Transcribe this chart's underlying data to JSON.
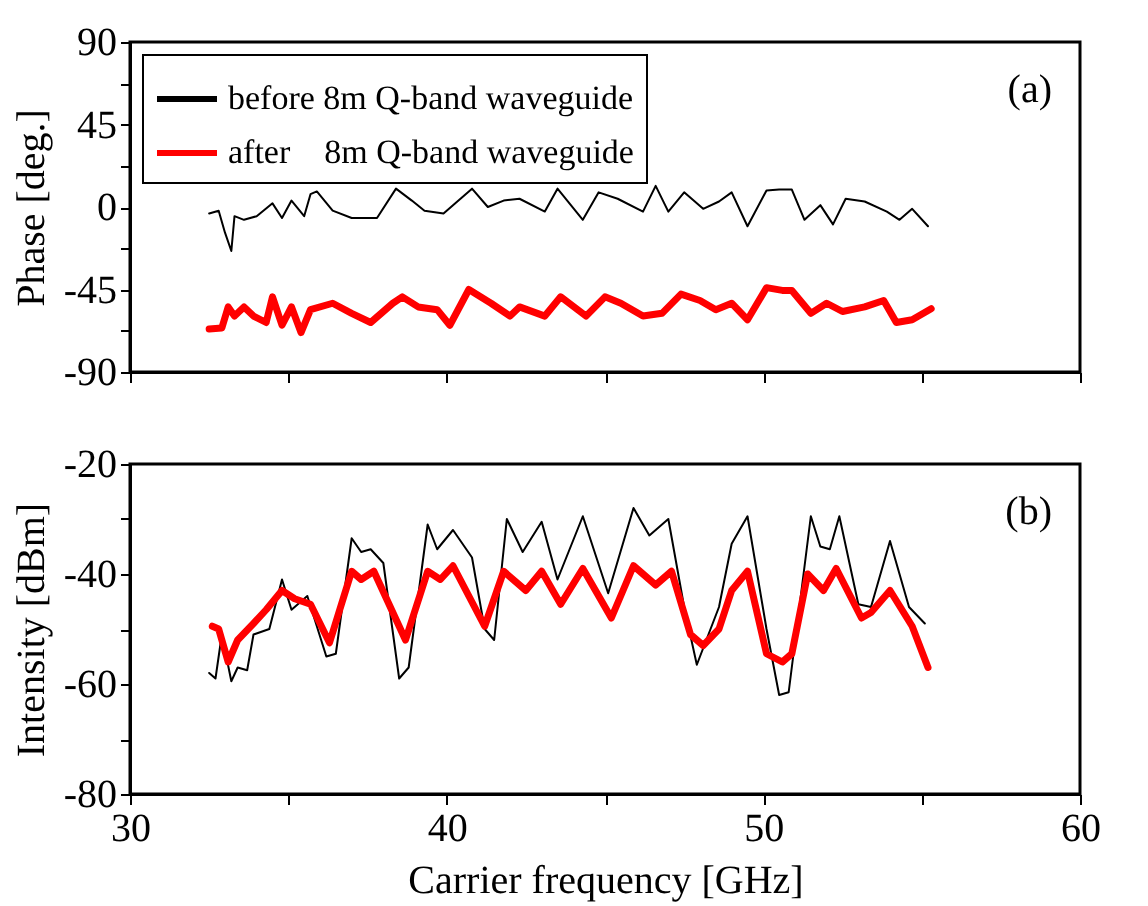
{
  "chart_data": [
    {
      "type": "line",
      "ylabel": "Phase [deg.]",
      "annotations": [
        "(a)"
      ],
      "legend": "top left",
      "tick_labels": "y",
      "xlim": [
        30,
        60
      ],
      "xticks": [
        {
          "value": 30,
          "label": null
        },
        {
          "value": 35,
          "label": null
        },
        {
          "value": 40,
          "label": null
        },
        {
          "value": 45,
          "label": null
        },
        {
          "value": 50,
          "label": null
        },
        {
          "value": 55,
          "label": null
        },
        {
          "value": 60,
          "label": null
        }
      ],
      "ylim": [
        -90,
        90
      ],
      "yticks": [
        -90,
        {
          "value": -67.5,
          "label": null
        },
        -45,
        {
          "value": -22.5,
          "label": null
        },
        0,
        {
          "value": 22.5,
          "label": null
        },
        45,
        {
          "value": 67.5,
          "label": null
        },
        90
      ],
      "series": [
        {
          "name": "before 8m Q-band waveguide",
          "color": "#000000",
          "x": [
            32.5,
            32.8,
            33.0,
            33.2,
            33.3,
            33.6,
            34.0,
            34.5,
            34.8,
            35.1,
            35.5,
            35.7,
            35.9,
            36.4,
            37.0,
            37.8,
            38.4,
            38.9,
            39.3,
            39.9,
            40.8,
            41.3,
            41.8,
            42.3,
            43.1,
            43.5,
            44.3,
            44.8,
            45.4,
            46.2,
            46.6,
            47.0,
            47.5,
            48.1,
            48.6,
            49.0,
            49.5,
            50.1,
            50.5,
            50.9,
            51.3,
            51.8,
            52.2,
            52.6,
            53.2,
            53.9,
            54.3,
            54.7,
            55.2
          ],
          "values": [
            -3.5,
            -2,
            -14,
            -24,
            -5,
            -7,
            -5,
            2,
            -6,
            3.5,
            -5,
            7,
            8.5,
            -2,
            -6,
            -6,
            10,
            3.5,
            -2,
            -3.5,
            10,
            0,
            3.5,
            4.5,
            -2.5,
            10,
            -7,
            8,
            4.5,
            -2.5,
            11.5,
            -2.5,
            8,
            -1,
            3,
            8,
            -10.5,
            9,
            9.5,
            9.5,
            -7,
            1,
            -9.5,
            4.5,
            3,
            -2.5,
            -7,
            -1,
            -10.5
          ]
        },
        {
          "name": "after    8m Q-band waveguide",
          "color": "#ff0000",
          "x": [
            32.5,
            32.9,
            33.1,
            33.3,
            33.6,
            33.9,
            34.3,
            34.5,
            34.8,
            35.1,
            35.4,
            35.7,
            36.4,
            37.0,
            37.6,
            38.3,
            38.6,
            39.1,
            39.7,
            40.1,
            40.7,
            41.4,
            42.0,
            42.3,
            43.1,
            43.6,
            44.4,
            45.0,
            45.5,
            46.2,
            46.8,
            47.4,
            48.0,
            48.5,
            49.0,
            49.5,
            50.1,
            50.6,
            50.9,
            51.5,
            52.0,
            52.5,
            53.2,
            53.8,
            54.2,
            54.7,
            55.3
          ],
          "values": [
            -66.5,
            -66,
            -54.5,
            -59.5,
            -54.5,
            -59.5,
            -63,
            -49,
            -64.5,
            -54.5,
            -68.5,
            -56,
            -52.5,
            -58,
            -63,
            -52.5,
            -49,
            -54.5,
            -56,
            -64.5,
            -45,
            -52.5,
            -59.5,
            -54.5,
            -59.5,
            -49,
            -59.5,
            -49,
            -52.5,
            -59.5,
            -58,
            -47.5,
            -51,
            -56,
            -52.5,
            -61.5,
            -44,
            -45.5,
            -45.5,
            -58,
            -52.5,
            -57,
            -54.5,
            -51,
            -63,
            -61.5,
            -55.5
          ]
        }
      ]
    },
    {
      "type": "line",
      "xlabel": "Carrier frequency [GHz]",
      "ylabel": "Intensity [dBm]",
      "annotations": [
        "(b)"
      ],
      "xlim": [
        30,
        60
      ],
      "xticks": [
        30,
        {
          "value": 35,
          "label": null
        },
        40,
        {
          "value": 45,
          "label": null
        },
        50,
        {
          "value": 55,
          "label": null
        },
        60
      ],
      "ylim": [
        -80,
        -20
      ],
      "yticks": [
        -80,
        {
          "value": -70,
          "label": null
        },
        -60,
        {
          "value": -50,
          "label": null
        },
        -40,
        {
          "value": -30,
          "label": null
        },
        -20
      ],
      "series": [
        {
          "color": "#000000",
          "x": [
            32.5,
            32.7,
            32.9,
            33.2,
            33.4,
            33.7,
            33.9,
            34.4,
            34.8,
            35.1,
            35.6,
            36.2,
            36.5,
            37.0,
            37.3,
            37.6,
            38.0,
            38.5,
            38.8,
            39.4,
            39.7,
            40.2,
            40.8,
            41.2,
            41.5,
            41.9,
            42.4,
            43.0,
            43.5,
            44.3,
            45.1,
            45.9,
            46.4,
            47.0,
            47.5,
            47.9,
            48.6,
            49.0,
            49.5,
            50.1,
            50.5,
            50.8,
            51.5,
            51.8,
            52.1,
            52.4,
            53.0,
            53.4,
            54.0,
            54.6,
            55.1
          ],
          "values": [
            -58,
            -59,
            -51,
            -59.5,
            -57,
            -57.5,
            -51,
            -50,
            -41,
            -46.5,
            -44,
            -55,
            -54.5,
            -33.5,
            -36,
            -35.5,
            -38,
            -59,
            -57,
            -31,
            -35.5,
            -32,
            -37,
            -50,
            -52,
            -30,
            -36,
            -30.5,
            -41,
            -29.5,
            -43.5,
            -28,
            -33,
            -30,
            -46,
            -56.5,
            -46,
            -34.5,
            -29.5,
            -50,
            -62,
            -61.5,
            -29.5,
            -35,
            -35.5,
            -29.5,
            -45.5,
            -46,
            -34,
            -46,
            -49
          ]
        },
        {
          "color": "#ff0000",
          "x": [
            32.6,
            32.8,
            33.1,
            33.4,
            33.9,
            34.3,
            34.8,
            35.2,
            35.7,
            36.3,
            37.0,
            37.3,
            37.7,
            38.7,
            39.4,
            39.8,
            40.2,
            41.2,
            41.8,
            42.5,
            43.0,
            43.6,
            44.3,
            45.2,
            45.9,
            46.6,
            47.1,
            47.7,
            48.1,
            48.6,
            49.0,
            49.5,
            50.1,
            50.6,
            50.9,
            51.4,
            51.9,
            52.3,
            53.1,
            53.4,
            54.0,
            54.7,
            55.2
          ],
          "values": [
            -49.5,
            -50,
            -56,
            -52,
            -49,
            -46.5,
            -43,
            -44.5,
            -45.5,
            -52.5,
            -39.5,
            -41,
            -39.5,
            -52,
            -39.5,
            -41,
            -38.5,
            -49.5,
            -39.5,
            -43,
            -39.5,
            -45.5,
            -39,
            -48,
            -38.5,
            -42,
            -39.5,
            -51,
            -53,
            -50,
            -43,
            -39.5,
            -54.5,
            -56,
            -54.5,
            -40,
            -43,
            -39,
            -48,
            -47,
            -43,
            -49.5,
            -57
          ]
        }
      ]
    }
  ]
}
